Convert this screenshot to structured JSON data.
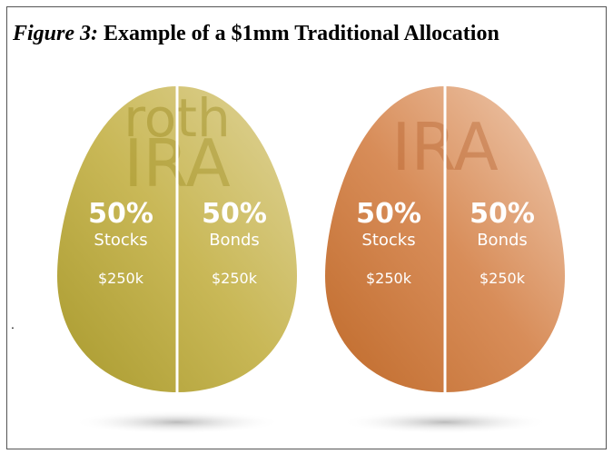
{
  "title": {
    "label": "Figure 3:",
    "text": "Example of a $1mm Traditional Allocation"
  },
  "note": ".",
  "eggs": [
    {
      "label_top": "roth",
      "label": "IRA",
      "halves": [
        {
          "percent": "50%",
          "name": "Stocks",
          "amount": "$250k"
        },
        {
          "percent": "50%",
          "name": "Bonds",
          "amount": "$250k"
        }
      ]
    },
    {
      "label": "IRA",
      "halves": [
        {
          "percent": "50%",
          "name": "Stocks",
          "amount": "$250k"
        },
        {
          "percent": "50%",
          "name": "Bonds",
          "amount": "$250k"
        }
      ]
    }
  ]
}
